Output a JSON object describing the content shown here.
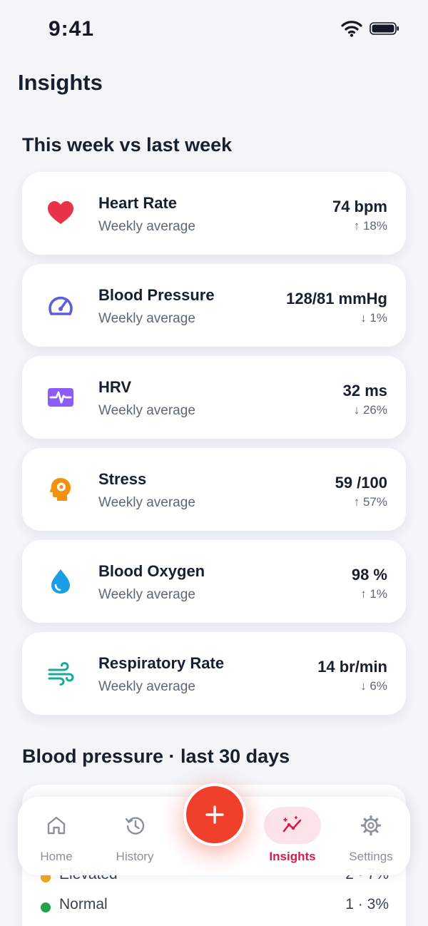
{
  "status_bar": {
    "time": "9:41"
  },
  "header": {
    "title": "Insights"
  },
  "weekly": {
    "title": "This week vs last week",
    "metrics": [
      {
        "name": "Heart Rate",
        "subtitle": "Weekly average",
        "value": "74 bpm",
        "change": "↑ 18%",
        "icon": "heart-icon",
        "color": "#e8334a"
      },
      {
        "name": "Blood Pressure",
        "subtitle": "Weekly average",
        "value": "128/81 mmHg",
        "change": "↓ 1%",
        "icon": "gauge-icon",
        "color": "#5f5fd8"
      },
      {
        "name": "HRV",
        "subtitle": "Weekly average",
        "value": "32 ms",
        "change": "↓ 26%",
        "icon": "pulse-icon",
        "color": "#8b5cf6"
      },
      {
        "name": "Stress",
        "subtitle": "Weekly average",
        "value": "59 /100",
        "change": "↑ 57%",
        "icon": "brain-gear-icon",
        "color": "#f29111"
      },
      {
        "name": "Blood Oxygen",
        "subtitle": "Weekly average",
        "value": "98 %",
        "change": "↑ 1%",
        "icon": "droplet-icon",
        "color": "#1a9ee6"
      },
      {
        "name": "Respiratory Rate",
        "subtitle": "Weekly average",
        "value": "14 br/min",
        "change": "↓ 6%",
        "icon": "wind-icon",
        "color": "#19a99b"
      }
    ]
  },
  "blood_pressure": {
    "title": "Blood pressure · last 30 days",
    "legend": [
      {
        "label": "Elevated",
        "value": "2 · 7%",
        "color": "#f0a81c"
      },
      {
        "label": "Normal",
        "value": "1 · 3%",
        "color": "#22a34a"
      }
    ]
  },
  "tab_bar": {
    "tabs": [
      {
        "label": "Home",
        "icon": "home-icon"
      },
      {
        "label": "History",
        "icon": "history-icon"
      },
      {
        "label": "Insights",
        "icon": "insights-icon",
        "active": true
      },
      {
        "label": "Settings",
        "icon": "gear-icon"
      }
    ],
    "add_button": {
      "icon": "plus-icon",
      "color": "#f0402c"
    }
  }
}
